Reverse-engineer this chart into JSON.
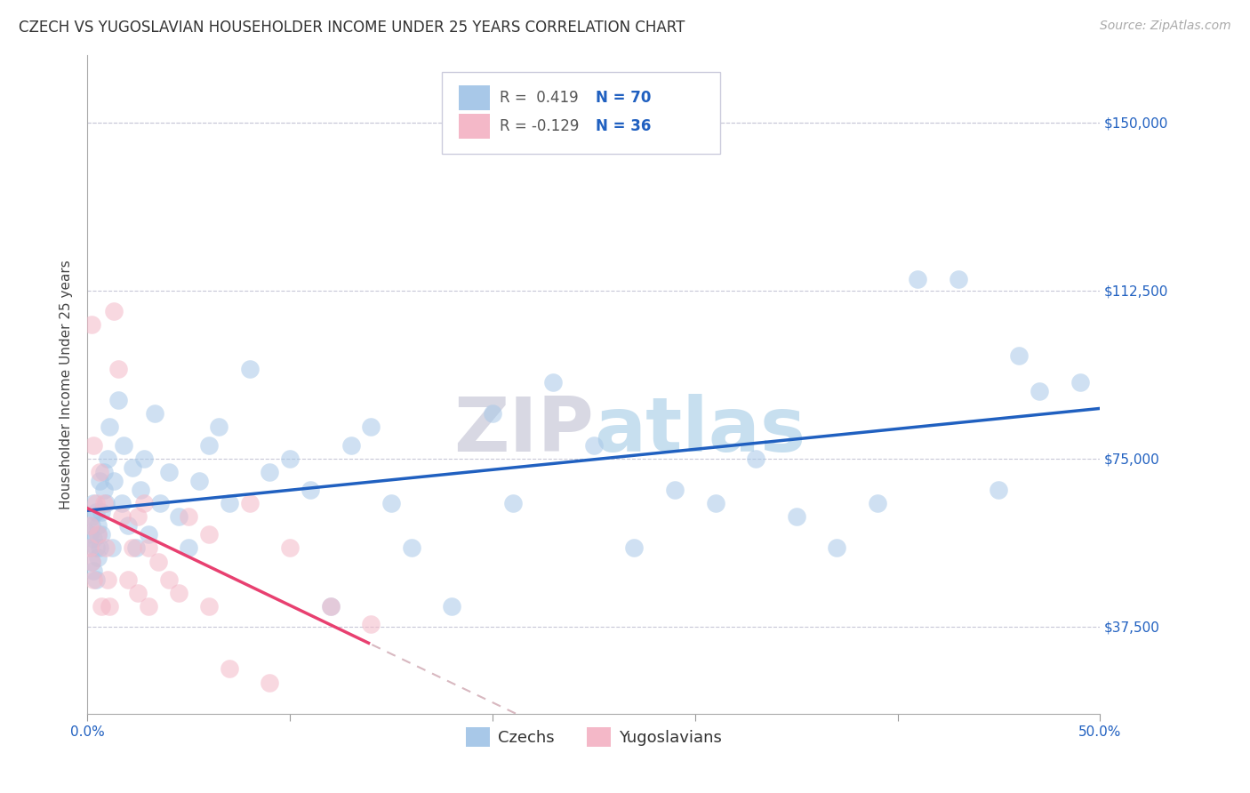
{
  "title": "CZECH VS YUGOSLAVIAN HOUSEHOLDER INCOME UNDER 25 YEARS CORRELATION CHART",
  "source": "Source: ZipAtlas.com",
  "ylabel": "Householder Income Under 25 years",
  "ytick_labels": [
    "$37,500",
    "$75,000",
    "$112,500",
    "$150,000"
  ],
  "ytick_values": [
    37500,
    75000,
    112500,
    150000
  ],
  "xlim": [
    0.0,
    0.5
  ],
  "ylim": [
    18000,
    165000
  ],
  "r_czech": 0.419,
  "n_czech": 70,
  "r_yugoslav": -0.129,
  "n_yugoslav": 36,
  "czech_color": "#a8c8e8",
  "yugoslav_color": "#f4b8c8",
  "trend_czech_color": "#2060c0",
  "trend_yugoslav_color": "#e84070",
  "trend_yugoslav_dash_color": "#d8b8c0",
  "background_color": "#ffffff",
  "grid_color": "#c8c8d8",
  "legend_czechs": "Czechs",
  "legend_yugoslavians": "Yugoslavians",
  "czech_x": [
    0.001,
    0.001,
    0.002,
    0.002,
    0.002,
    0.003,
    0.003,
    0.003,
    0.004,
    0.004,
    0.004,
    0.005,
    0.005,
    0.005,
    0.006,
    0.006,
    0.007,
    0.007,
    0.008,
    0.008,
    0.009,
    0.01,
    0.011,
    0.012,
    0.013,
    0.015,
    0.017,
    0.018,
    0.02,
    0.022,
    0.024,
    0.026,
    0.028,
    0.03,
    0.033,
    0.036,
    0.04,
    0.045,
    0.05,
    0.055,
    0.06,
    0.065,
    0.07,
    0.08,
    0.09,
    0.1,
    0.11,
    0.12,
    0.13,
    0.14,
    0.15,
    0.16,
    0.18,
    0.2,
    0.21,
    0.23,
    0.25,
    0.27,
    0.29,
    0.31,
    0.33,
    0.35,
    0.37,
    0.39,
    0.41,
    0.43,
    0.45,
    0.46,
    0.47,
    0.49
  ],
  "czech_y": [
    55000,
    58000,
    60000,
    52000,
    62000,
    57000,
    50000,
    65000,
    55000,
    63000,
    48000,
    60000,
    58000,
    53000,
    70000,
    55000,
    63000,
    58000,
    72000,
    68000,
    65000,
    75000,
    82000,
    55000,
    70000,
    88000,
    65000,
    78000,
    60000,
    73000,
    55000,
    68000,
    75000,
    58000,
    85000,
    65000,
    72000,
    62000,
    55000,
    70000,
    78000,
    82000,
    65000,
    95000,
    72000,
    75000,
    68000,
    42000,
    78000,
    82000,
    65000,
    55000,
    42000,
    85000,
    65000,
    92000,
    78000,
    55000,
    68000,
    65000,
    75000,
    62000,
    55000,
    65000,
    115000,
    115000,
    68000,
    98000,
    90000,
    92000
  ],
  "yugoslav_x": [
    0.001,
    0.001,
    0.002,
    0.002,
    0.003,
    0.003,
    0.004,
    0.005,
    0.006,
    0.007,
    0.008,
    0.009,
    0.01,
    0.011,
    0.013,
    0.015,
    0.017,
    0.02,
    0.022,
    0.025,
    0.028,
    0.03,
    0.035,
    0.04,
    0.05,
    0.06,
    0.08,
    0.09,
    0.1,
    0.12,
    0.14,
    0.06,
    0.045,
    0.07,
    0.03,
    0.025
  ],
  "yugoslav_y": [
    60000,
    55000,
    105000,
    52000,
    78000,
    48000,
    65000,
    58000,
    72000,
    42000,
    65000,
    55000,
    48000,
    42000,
    108000,
    95000,
    62000,
    48000,
    55000,
    45000,
    65000,
    55000,
    52000,
    48000,
    62000,
    42000,
    65000,
    25000,
    55000,
    42000,
    38000,
    58000,
    45000,
    28000,
    42000,
    62000
  ],
  "title_fontsize": 12,
  "source_fontsize": 10,
  "axis_label_fontsize": 11,
  "tick_fontsize": 11,
  "legend_fontsize": 13
}
